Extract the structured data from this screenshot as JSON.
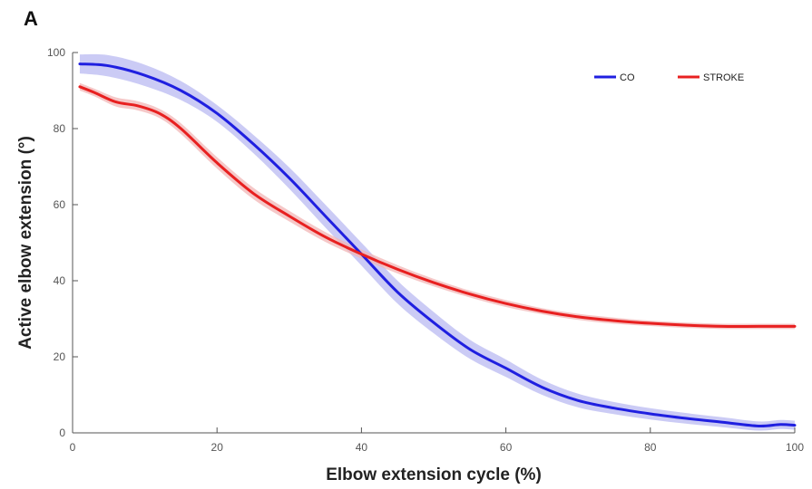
{
  "chart_data": {
    "type": "line",
    "panel_label": "A",
    "title": "",
    "xlabel": "Elbow extension cycle (%)",
    "ylabel": "Active elbow extension (°)",
    "xlim": [
      0,
      100
    ],
    "ylim": [
      0,
      100
    ],
    "xticks": [
      0,
      20,
      40,
      60,
      80,
      100
    ],
    "yticks": [
      0,
      20,
      40,
      60,
      80,
      100
    ],
    "grid": false,
    "legend_position": "top-right",
    "series": [
      {
        "name": "CO",
        "color": "#1f1fe0",
        "band_color": "#b9b9f2",
        "x": [
          1,
          5,
          10,
          15,
          20,
          25,
          30,
          35,
          40,
          45,
          50,
          55,
          60,
          65,
          70,
          75,
          80,
          85,
          90,
          95,
          98,
          100
        ],
        "y": [
          97,
          96.5,
          94,
          90,
          84,
          76,
          67,
          57,
          47,
          37,
          29,
          22,
          17,
          12,
          8.5,
          6.5,
          5,
          3.8,
          2.8,
          1.8,
          2.2,
          2
        ],
        "band": [
          2.5,
          2.8,
          2.8,
          2.5,
          2.2,
          2.4,
          2.8,
          3,
          3,
          3,
          2.8,
          2.5,
          2.3,
          2,
          1.8,
          1.6,
          1.5,
          1.4,
          1.3,
          1.2,
          1.2,
          1.2
        ]
      },
      {
        "name": "STROKE",
        "color": "#e82020",
        "band_color": "#f2b6b6",
        "x": [
          1,
          3,
          6,
          9,
          12,
          15,
          20,
          25,
          30,
          35,
          40,
          45,
          50,
          55,
          60,
          65,
          70,
          75,
          80,
          85,
          90,
          95,
          100
        ],
        "y": [
          91,
          89.5,
          87,
          86,
          84,
          80,
          71,
          63,
          57,
          51.5,
          47,
          43,
          39.5,
          36.5,
          34,
          32,
          30.5,
          29.5,
          28.8,
          28.3,
          28,
          28,
          28
        ],
        "band": [
          1,
          1,
          1.2,
          1.2,
          1.2,
          1.4,
          1.5,
          1.5,
          1.4,
          1.3,
          1.2,
          1.1,
          1,
          0.9,
          0.9,
          0.8,
          0.8,
          0.8,
          0.7,
          0.7,
          0.7,
          0.7,
          0.7
        ]
      }
    ]
  }
}
